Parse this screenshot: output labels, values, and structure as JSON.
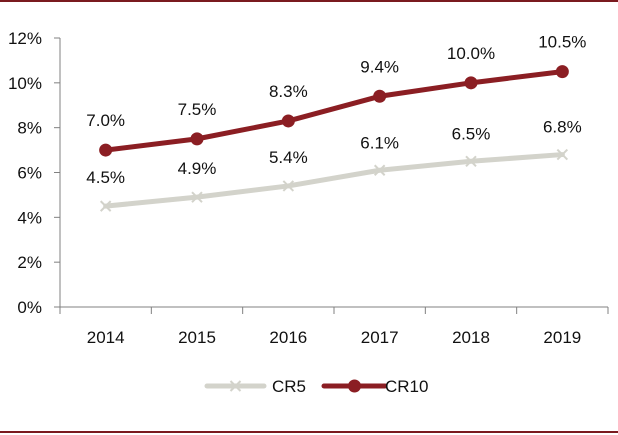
{
  "chart_data": {
    "type": "line",
    "title": "",
    "xlabel": "",
    "ylabel": "",
    "categories": [
      "2014",
      "2015",
      "2016",
      "2017",
      "2018",
      "2019"
    ],
    "ylim": [
      0,
      12
    ],
    "y_ticks": [
      0,
      2,
      4,
      6,
      8,
      10,
      12
    ],
    "y_tick_labels": [
      "0%",
      "2%",
      "4%",
      "6%",
      "8%",
      "10%",
      "12%"
    ],
    "grid": false,
    "legend_position": "bottom",
    "series": [
      {
        "name": "CR5",
        "values": [
          4.5,
          4.9,
          5.4,
          6.1,
          6.5,
          6.8
        ],
        "labels": [
          "4.5%",
          "4.9%",
          "5.4%",
          "6.1%",
          "6.5%",
          "6.8%"
        ],
        "color": "#d3d3cb",
        "marker": "x"
      },
      {
        "name": "CR10",
        "values": [
          7.0,
          7.5,
          8.3,
          9.4,
          10.0,
          10.5
        ],
        "labels": [
          "7.0%",
          "7.5%",
          "8.3%",
          "9.4%",
          "10.0%",
          "10.5%"
        ],
        "color": "#8b1e23",
        "marker": "circle"
      }
    ]
  },
  "frame_color": "#7a1a1f",
  "axis_color": "#808080"
}
